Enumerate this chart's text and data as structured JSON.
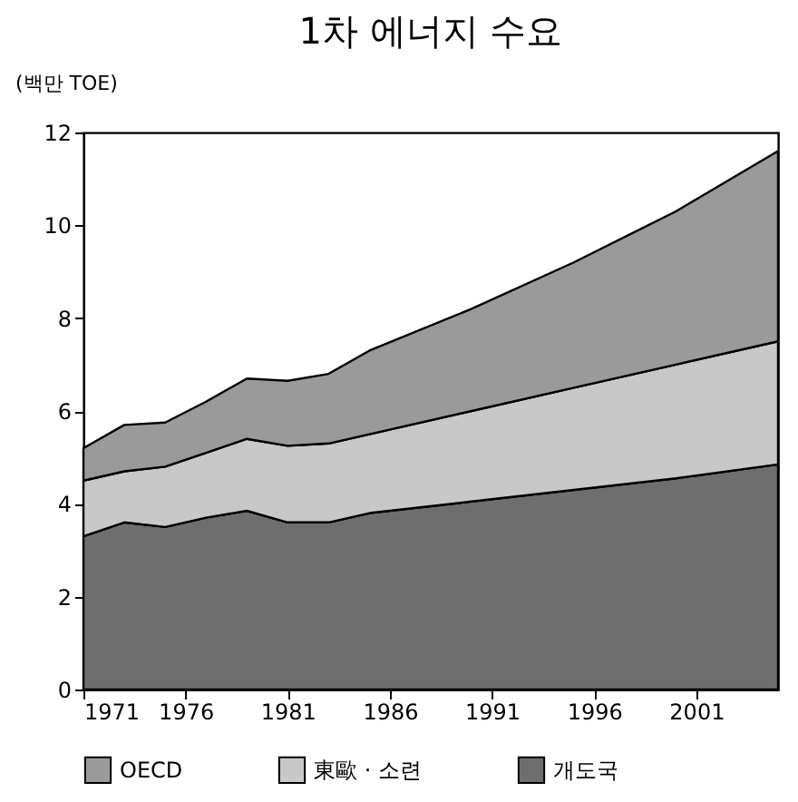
{
  "chart_data": {
    "type": "area",
    "title": "1차 에너지 수요",
    "ylabel": "(백만 TOE)",
    "stacked": true,
    "x": [
      1971,
      1973,
      1975,
      1977,
      1979,
      1981,
      1983,
      1985,
      1990,
      1995,
      2000,
      2005
    ],
    "series": [
      {
        "name": "개도국",
        "color": "#6e6e6e",
        "values": [
          3.3,
          3.6,
          3.5,
          3.7,
          3.85,
          3.6,
          3.6,
          3.8,
          4.05,
          4.3,
          4.55,
          4.85
        ]
      },
      {
        "name": "東歐 · 소련",
        "color": "#c8c8c8",
        "values": [
          1.2,
          1.1,
          1.3,
          1.4,
          1.55,
          1.65,
          1.7,
          1.7,
          1.95,
          2.2,
          2.45,
          2.65
        ]
      },
      {
        "name": "OECD",
        "color": "#9a9a9a",
        "values": [
          0.7,
          1.0,
          0.95,
          1.1,
          1.3,
          1.4,
          1.5,
          1.8,
          2.2,
          2.7,
          3.3,
          4.1
        ]
      }
    ],
    "xlim": [
      1971,
      2005
    ],
    "xticks": [
      1971,
      1976,
      1981,
      1986,
      1991,
      1996,
      2001
    ],
    "ylim": [
      0,
      12
    ],
    "yticks": [
      0,
      2,
      4,
      6,
      8,
      10,
      12
    ],
    "grid": false,
    "legend": "bottom"
  }
}
